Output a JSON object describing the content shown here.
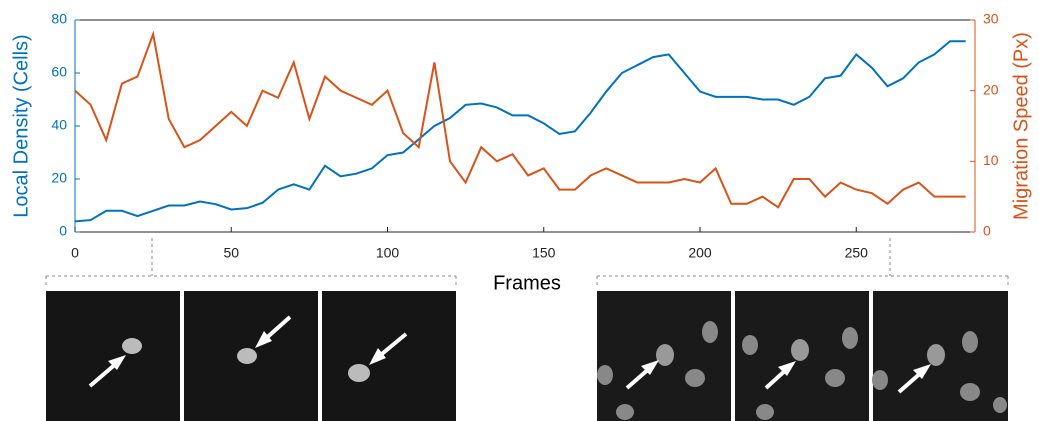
{
  "chart_data": {
    "type": "line",
    "x": [
      0,
      5,
      10,
      15,
      20,
      25,
      30,
      35,
      40,
      45,
      50,
      55,
      60,
      65,
      70,
      75,
      80,
      85,
      90,
      95,
      100,
      105,
      110,
      115,
      120,
      125,
      130,
      135,
      140,
      145,
      150,
      155,
      160,
      165,
      170,
      175,
      180,
      185,
      190,
      195,
      200,
      205,
      210,
      215,
      220,
      225,
      230,
      235,
      240,
      245,
      250,
      255,
      260,
      265,
      270,
      275,
      280,
      285
    ],
    "series": [
      {
        "name": "Local Density (Cells)",
        "color": "#0072bd",
        "axis": "y",
        "values": [
          4,
          4.5,
          8,
          8,
          6,
          8,
          10,
          10,
          11.5,
          10.5,
          8.5,
          9,
          11,
          16,
          18,
          16,
          25,
          21,
          22,
          24,
          29,
          30,
          35,
          40,
          43,
          48,
          48.5,
          47,
          44,
          44,
          41,
          37,
          38,
          45,
          53,
          60,
          63,
          66,
          67,
          60,
          53,
          51,
          51,
          51,
          50,
          50,
          48,
          51,
          58,
          59,
          67,
          62,
          55,
          58,
          64,
          67,
          72,
          72
        ]
      },
      {
        "name": "Migration Speed (Px)",
        "color": "#d95319",
        "axis": "y2",
        "values": [
          20,
          18,
          13,
          21,
          22,
          28,
          16,
          12,
          13,
          15,
          17,
          15,
          20,
          19,
          24,
          16,
          22,
          20,
          19,
          18,
          20,
          14,
          12,
          24,
          10,
          7,
          12,
          10,
          11,
          8,
          9,
          6,
          6,
          8,
          9,
          8,
          7,
          7,
          7,
          7.5,
          7,
          9,
          4,
          4,
          5,
          3.5,
          7.5,
          7.5,
          5,
          7,
          6,
          5.5,
          4,
          6,
          7,
          5,
          5,
          5
        ]
      }
    ],
    "x_label": "Frames",
    "xlim": [
      0,
      288
    ],
    "xticks": [
      0,
      50,
      100,
      150,
      200,
      250
    ],
    "ylim": [
      0,
      80
    ],
    "yticks": [
      0,
      20,
      40,
      60,
      80
    ],
    "y2lim": [
      0,
      30
    ],
    "y2ticks": [
      0,
      10,
      20,
      30
    ]
  }
}
